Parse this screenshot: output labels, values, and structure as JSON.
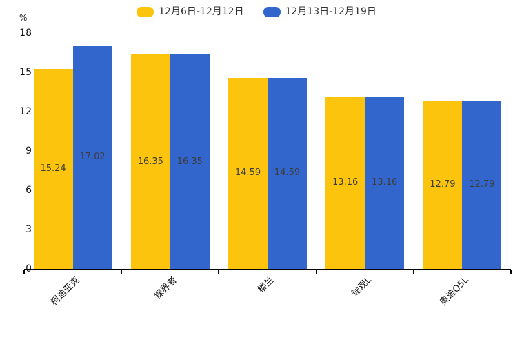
{
  "chart_data": {
    "type": "bar",
    "title": "",
    "xlabel": "",
    "ylabel": "%",
    "ylim": [
      0,
      18
    ],
    "yticks": [
      0,
      3,
      6,
      9,
      12,
      15,
      18
    ],
    "grid": false,
    "legend_position": "top-center",
    "bar_label_position": "inside-middle",
    "categories": [
      "柯迪亚克",
      "探界者",
      "楼兰",
      "途观L",
      "奥迪Q5L"
    ],
    "series": [
      {
        "name": "12月6日-12月12日",
        "color": "#FCC40D",
        "values": [
          15.24,
          16.35,
          14.59,
          13.16,
          12.79
        ]
      },
      {
        "name": "12月13日-12月19日",
        "color": "#3266CD",
        "values": [
          17.02,
          16.35,
          14.59,
          13.16,
          12.79
        ]
      }
    ]
  },
  "colors": {
    "axis_line": "#000000",
    "axis_text": "#111111",
    "value_text": "#3d3d3d"
  }
}
